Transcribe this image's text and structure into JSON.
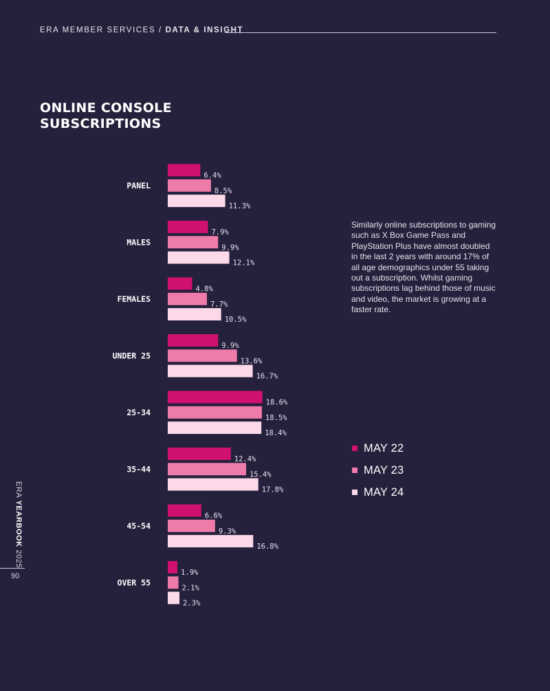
{
  "header": {
    "section": "ERA MEMBER SERVICES /",
    "subsection": "DATA & INSIGHT"
  },
  "title": {
    "line1": "ONLINE CONSOLE",
    "line2": "SUBSCRIPTIONS"
  },
  "description": "Similarly online subscriptions to gaming such as X Box Game Pass and PlayStation Plus have almost doubled in the last 2 years with around 17% of all age demographics under 55 taking out a subscription. Whilst gaming subscriptions lag behind those of music and video, the market is growing at a faster rate.",
  "sidebar": {
    "era": "ERA",
    "yearbook": "YEARBOOK",
    "year": "2025",
    "page_number": "90"
  },
  "colors": {
    "background": "#25203b",
    "may22": "#d1116f",
    "may23": "#ef7bab",
    "may24": "#fbd9e8"
  },
  "chart_data": {
    "type": "bar",
    "orientation": "horizontal",
    "title": "ONLINE CONSOLE SUBSCRIPTIONS",
    "value_suffix": "%",
    "categories": [
      "PANEL",
      "MALES",
      "FEMALES",
      "UNDER 25",
      "25-34",
      "35-44",
      "45-54",
      "OVER 55"
    ],
    "series": [
      {
        "name": "MAY 22",
        "color": "#d1116f",
        "values": [
          6.4,
          7.9,
          4.8,
          9.9,
          18.6,
          12.4,
          6.6,
          1.9
        ]
      },
      {
        "name": "MAY 23",
        "color": "#ef7bab",
        "values": [
          8.5,
          9.9,
          7.7,
          13.6,
          18.5,
          15.4,
          9.3,
          2.1
        ]
      },
      {
        "name": "MAY 24",
        "color": "#fbd9e8",
        "values": [
          11.3,
          12.1,
          10.5,
          16.7,
          18.4,
          17.8,
          16.8,
          2.3
        ]
      }
    ],
    "legend_position": "right"
  }
}
